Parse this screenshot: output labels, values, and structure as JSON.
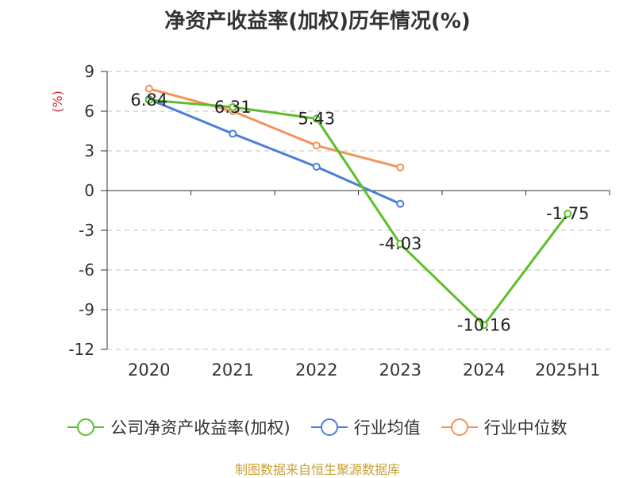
{
  "chart_data": {
    "type": "line",
    "title": "净资产收益率(加权)历年情况(%)",
    "ylabel": "(%)",
    "categories": [
      "2020",
      "2021",
      "2022",
      "2023",
      "2024",
      "2025H1"
    ],
    "ylim": [
      -12,
      9
    ],
    "yticks": [
      9,
      6,
      3,
      0,
      -3,
      -6,
      -9,
      -12
    ],
    "grid": true,
    "legend_position": "bottom",
    "series": [
      {
        "name": "公司净资产收益率(加权)",
        "color": "#5cbf2a",
        "values": [
          6.84,
          6.31,
          5.43,
          -4.03,
          -10.16,
          -1.75
        ],
        "labels": [
          "6.84",
          "6.31",
          "5.43",
          "-4.03",
          "-10.16",
          "-1.75"
        ]
      },
      {
        "name": "行业均值",
        "color": "#4a7fd9",
        "values": [
          6.9,
          4.3,
          1.8,
          -1.0,
          null,
          null
        ]
      },
      {
        "name": "行业中位数",
        "color": "#f4925a",
        "values": [
          7.7,
          6.0,
          3.4,
          1.75,
          null,
          null
        ]
      }
    ]
  },
  "source": "制图数据来自恒生聚源数据库"
}
